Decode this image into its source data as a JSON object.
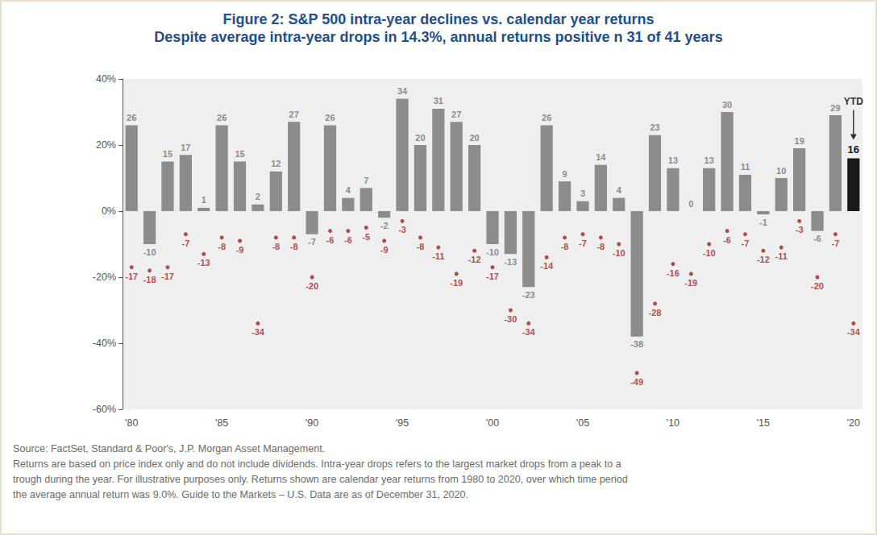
{
  "chart_data": {
    "type": "bar",
    "title": "Figure 2: S&P 500 intra-year declines vs. calendar year returns",
    "subtitle": "Despite average intra-year drops in 14.3%, annual returns positive n 31 of 41 years",
    "categories": [
      "'80",
      null,
      null,
      null,
      null,
      "'85",
      null,
      null,
      null,
      null,
      "'90",
      null,
      null,
      null,
      null,
      "'95",
      null,
      null,
      null,
      null,
      "'00",
      null,
      null,
      null,
      null,
      "'05",
      null,
      null,
      null,
      null,
      "'10",
      null,
      null,
      null,
      null,
      "'15",
      null,
      null,
      null,
      null,
      "'20"
    ],
    "series": [
      {
        "type": "bar",
        "colors": [
          "#8c8c8c",
          "#8c8c8c",
          "#8c8c8c",
          "#8c8c8c",
          "#8c8c8c",
          "#8c8c8c",
          "#8c8c8c",
          "#8c8c8c",
          "#8c8c8c",
          "#8c8c8c",
          "#8c8c8c",
          "#8c8c8c",
          "#8c8c8c",
          "#8c8c8c",
          "#8c8c8c",
          "#8c8c8c",
          "#8c8c8c",
          "#8c8c8c",
          "#8c8c8c",
          "#8c8c8c",
          "#8c8c8c",
          "#8c8c8c",
          "#8c8c8c",
          "#8c8c8c",
          "#8c8c8c",
          "#8c8c8c",
          "#8c8c8c",
          "#8c8c8c",
          "#8c8c8c",
          "#8c8c8c",
          "#8c8c8c",
          "#8c8c8c",
          "#8c8c8c",
          "#8c8c8c",
          "#8c8c8c",
          "#8c8c8c",
          "#8c8c8c",
          "#8c8c8c",
          "#8c8c8c",
          "#8c8c8c",
          "#1a1a1a"
        ],
        "values": [
          26,
          -10,
          15,
          17,
          1,
          26,
          15,
          2,
          12,
          27,
          -7,
          26,
          4,
          7,
          -2,
          34,
          20,
          31,
          27,
          20,
          -10,
          -13,
          -23,
          26,
          9,
          3,
          14,
          4,
          -38,
          23,
          13,
          0,
          13,
          30,
          11,
          -1,
          10,
          19,
          -6,
          29,
          16
        ]
      },
      {
        "type": "scatter",
        "color": "#a3201d",
        "marker": "circle",
        "values": [
          -17,
          -18,
          -17,
          -7,
          -13,
          -8,
          -9,
          -34,
          -8,
          -8,
          -20,
          -6,
          -6,
          -5,
          -9,
          -3,
          -8,
          -11,
          -19,
          -12,
          -17,
          -30,
          -34,
          -14,
          -8,
          -7,
          -8,
          -10,
          -49,
          -28,
          -16,
          -19,
          -10,
          -6,
          -7,
          -12,
          -11,
          -3,
          -20,
          -7,
          -34
        ]
      }
    ],
    "ylim": [
      -60,
      40
    ],
    "yticks": [
      {
        "value": -60,
        "label": "-60%"
      },
      {
        "value": -40,
        "label": "-40%"
      },
      {
        "value": -20,
        "label": "-20%"
      },
      {
        "value": 0,
        "label": "0%"
      },
      {
        "value": 20,
        "label": "20%"
      },
      {
        "value": 40,
        "label": "40%"
      }
    ],
    "grid": false,
    "data_labels": true,
    "annotations": [
      {
        "text": "YTD",
        "category": "'20"
      }
    ],
    "notes": [
      "Source: FactSet, Standard & Poor's, J.P. Morgan Asset Management.",
      "Returns are based on price index only and do not include dividends. Intra-year drops refers to the largest market drops from a peak to a",
      "trough during the year. For illustrative purposes only. Returns shown are calendar year returns from 1980 to 2020, over which time period",
      "the average annual return was 9.0%. Guide to the Markets – U.S. Data are as of December 31, 2020."
    ]
  }
}
